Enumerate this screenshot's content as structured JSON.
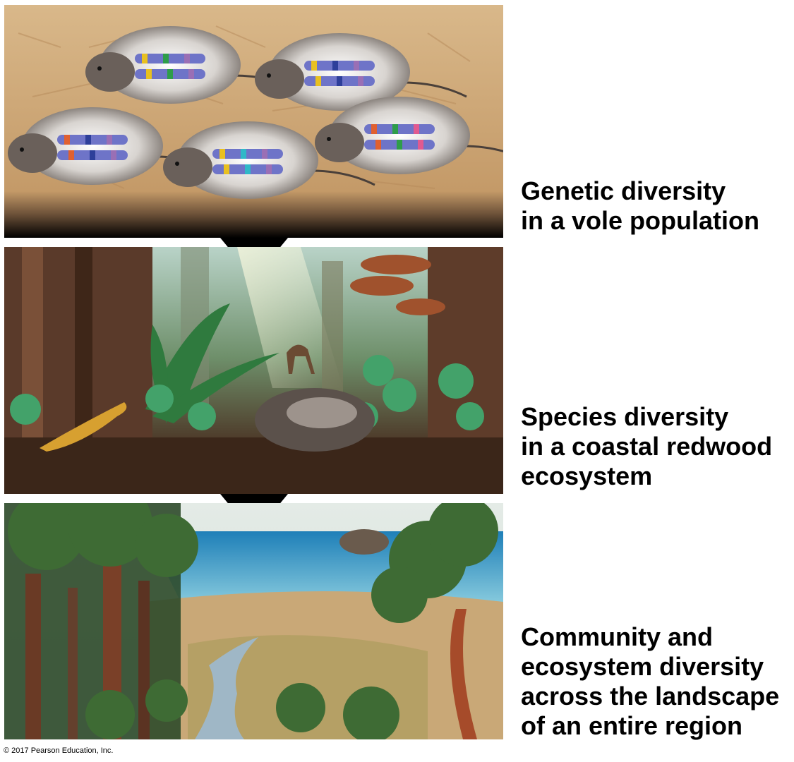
{
  "levels": [
    {
      "label": "Genetic diversity\nin a vole population",
      "image": "vole-population-chromosomes"
    },
    {
      "label": "Species diversity\nin a coastal redwood\necosystem",
      "image": "redwood-forest-floor"
    },
    {
      "label": "Community and\necosystem diversity\nacross the landscape\nof an entire region",
      "image": "coastal-landscape"
    }
  ],
  "copyright": "© 2017 Pearson Education, Inc.",
  "colors": {
    "arrow": "#000000",
    "background": "#ffffff",
    "ground": "#c9a877"
  }
}
